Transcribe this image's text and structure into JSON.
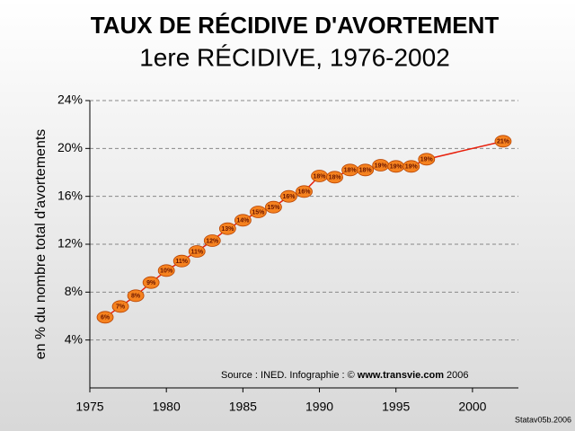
{
  "chart_data": {
    "type": "line",
    "title": "TAUX DE RÉCIDIVE D'AVORTEMENT",
    "subtitle": "1ere RÉCIDIVE, 1976-2002",
    "y_label": "en % du nombre total d'avortements",
    "source": [
      "Source : INED. Infographie : ©",
      "www.transvie.com",
      "2006"
    ],
    "credit": "Statav05b.2006",
    "x": [
      1976,
      1977,
      1978,
      1979,
      1980,
      1981,
      1982,
      1983,
      1984,
      1985,
      1986,
      1987,
      1988,
      1989,
      1990,
      1991,
      1992,
      1993,
      1994,
      1995,
      1996,
      1997,
      2002
    ],
    "values": [
      5.9,
      6.8,
      7.7,
      8.8,
      9.8,
      10.6,
      11.4,
      12.3,
      13.3,
      14.0,
      14.7,
      15.1,
      16.0,
      16.4,
      17.7,
      17.6,
      18.2,
      18.2,
      18.6,
      18.5,
      18.5,
      19.1,
      20.6
    ],
    "value_labels": [
      "6%",
      "7%",
      "8%",
      "9%",
      "10%",
      "11%",
      "11%",
      "12%",
      "13%",
      "14%",
      "15%",
      "15%",
      "16%",
      "16%",
      "18%",
      "18%",
      "18%",
      "18%",
      "19%",
      "19%",
      "19%",
      "19%",
      "21%"
    ],
    "color": "#e8200c",
    "marker_color": "#f5821f",
    "xlim": [
      1975,
      2003
    ],
    "xticks": [
      1975,
      1980,
      1985,
      1990,
      1995,
      2000
    ],
    "ylim": [
      0,
      24
    ],
    "yticks": [
      {
        "value": 4,
        "label": "4%"
      },
      {
        "value": 8,
        "label": "8%"
      },
      {
        "value": 12,
        "label": "12%"
      },
      {
        "value": 16,
        "label": "16%"
      },
      {
        "value": 20,
        "label": "20%"
      },
      {
        "value": 24,
        "label": "24%"
      }
    ],
    "grid": true
  }
}
